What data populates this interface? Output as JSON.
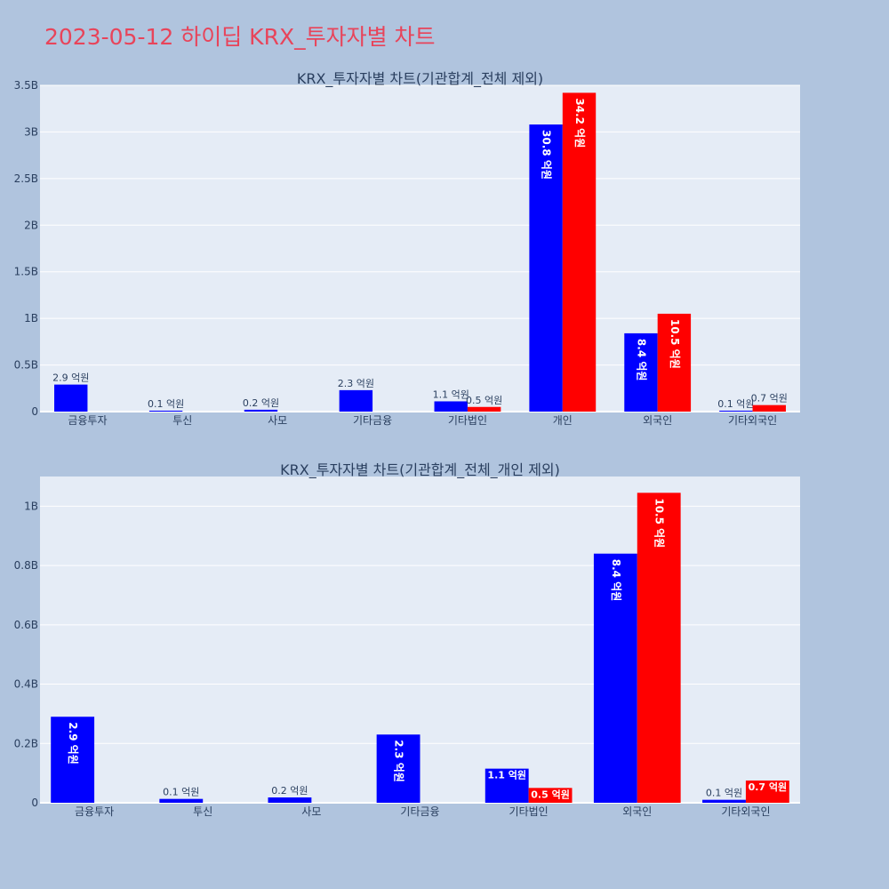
{
  "page_title": "2023-05-12 하이딥 KRX_투자자별 차트",
  "chart_data": [
    {
      "type": "bar",
      "title": "KRX_투자자별 차트(기관합계_전체 제외)",
      "categories": [
        "금융투자",
        "투신",
        "사모",
        "기타금융",
        "기타법인",
        "개인",
        "외국인",
        "기타외국인"
      ],
      "ylim": [
        0,
        3.5
      ],
      "ytick_values": [
        0,
        0.5,
        1,
        1.5,
        2,
        2.5,
        3,
        3.5
      ],
      "ytick_labels": [
        "0",
        "0.5B",
        "1B",
        "1.5B",
        "2B",
        "2.5B",
        "3B",
        "3.5B"
      ],
      "grid": true,
      "series": [
        {
          "color": "#0000ff",
          "values": [
            0.29,
            0.01,
            0.02,
            0.23,
            0.11,
            3.08,
            0.84,
            0.01
          ],
          "labels": [
            "2.9 억원",
            "0.1 억원",
            "0.2 억원",
            "2.3 억원",
            "1.1 억원",
            "30.8 억원",
            "8.4 억원",
            "0.1 억원"
          ]
        },
        {
          "color": "#ff0000",
          "values": [
            0,
            0,
            0,
            0,
            0.05,
            3.42,
            1.05,
            0.07
          ],
          "labels": [
            "",
            "",
            "",
            "",
            "0.5 억원",
            "34.2 억원",
            "10.5 억원",
            "0.7 억원"
          ]
        }
      ]
    },
    {
      "type": "bar",
      "title": "KRX_투자자별 차트(기관합계_전체_개인 제외)",
      "categories": [
        "금융투자",
        "투신",
        "사모",
        "기타금융",
        "기타법인",
        "외국인",
        "기타외국인"
      ],
      "ylim": [
        0,
        1.1
      ],
      "ytick_values": [
        0,
        0.2,
        0.4,
        0.6,
        0.8,
        1
      ],
      "ytick_labels": [
        "0",
        "0.2B",
        "0.4B",
        "0.6B",
        "0.8B",
        "1B"
      ],
      "grid": true,
      "series": [
        {
          "color": "#0000ff",
          "values": [
            0.29,
            0.013,
            0.018,
            0.23,
            0.115,
            0.84,
            0.01
          ],
          "labels": [
            "2.9 억원",
            "0.1 억원",
            "0.2 억원",
            "2.3 억원",
            "1.1 억원",
            "8.4 억원",
            "0.1 억원"
          ]
        },
        {
          "color": "#ff0000",
          "values": [
            0,
            0,
            0,
            0,
            0.05,
            1.045,
            0.075
          ],
          "labels": [
            "",
            "",
            "",
            "",
            "0.5 억원",
            "10.5 억원",
            "0.7 억원"
          ]
        }
      ]
    }
  ]
}
